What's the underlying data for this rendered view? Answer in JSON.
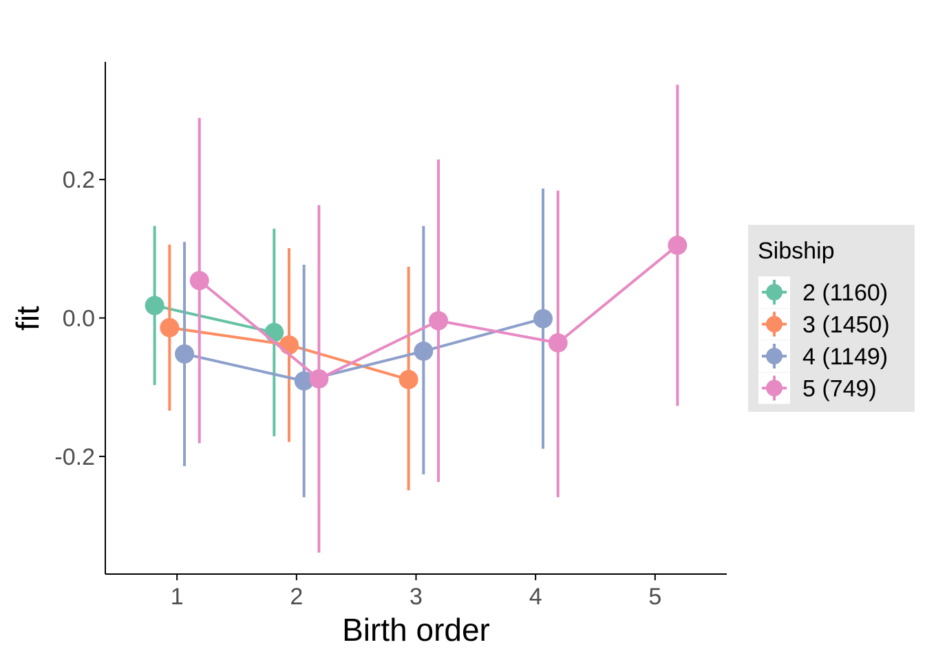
{
  "chart_data": {
    "type": "line",
    "xlabel": "Birth order",
    "ylabel": "fit",
    "x_ticks": [
      1,
      2,
      3,
      4,
      5
    ],
    "y_ticks": [
      -0.2,
      0.0,
      0.2
    ],
    "y_tick_labels": [
      "-0.2",
      "0.0",
      "0.2"
    ],
    "xlim": [
      0.4,
      5.6
    ],
    "ylim": [
      -0.37,
      0.37
    ],
    "grid": false,
    "error_bars": true,
    "legend_title": "Sibship",
    "legend_position": "right",
    "series": [
      {
        "name": "2 (1160)",
        "color": "#66C2A5",
        "offset": -0.1875,
        "points": [
          {
            "x": 1,
            "y": 0.018,
            "lo": -0.097,
            "hi": 0.133
          },
          {
            "x": 2,
            "y": -0.021,
            "lo": -0.171,
            "hi": 0.129
          }
        ]
      },
      {
        "name": "3 (1450)",
        "color": "#FC8D62",
        "offset": -0.0625,
        "points": [
          {
            "x": 1,
            "y": -0.014,
            "lo": -0.134,
            "hi": 0.106
          },
          {
            "x": 2,
            "y": -0.039,
            "lo": -0.179,
            "hi": 0.101
          },
          {
            "x": 3,
            "y": -0.089,
            "lo": -0.249,
            "hi": 0.074
          }
        ]
      },
      {
        "name": "4 (1149)",
        "color": "#8DA0CB",
        "offset": 0.0625,
        "points": [
          {
            "x": 1,
            "y": -0.052,
            "lo": -0.214,
            "hi": 0.11
          },
          {
            "x": 2,
            "y": -0.091,
            "lo": -0.259,
            "hi": 0.077
          },
          {
            "x": 3,
            "y": -0.048,
            "lo": -0.226,
            "hi": 0.133
          },
          {
            "x": 4,
            "y": -0.001,
            "lo": -0.189,
            "hi": 0.187
          }
        ]
      },
      {
        "name": "5 (749)",
        "color": "#E78AC3",
        "offset": 0.1875,
        "points": [
          {
            "x": 1,
            "y": 0.054,
            "lo": -0.181,
            "hi": 0.289
          },
          {
            "x": 2,
            "y": -0.088,
            "lo": -0.339,
            "hi": 0.163
          },
          {
            "x": 3,
            "y": -0.004,
            "lo": -0.237,
            "hi": 0.229
          },
          {
            "x": 4,
            "y": -0.036,
            "lo": -0.259,
            "hi": 0.184
          },
          {
            "x": 5,
            "y": 0.105,
            "lo": -0.127,
            "hi": 0.337
          }
        ]
      }
    ]
  }
}
